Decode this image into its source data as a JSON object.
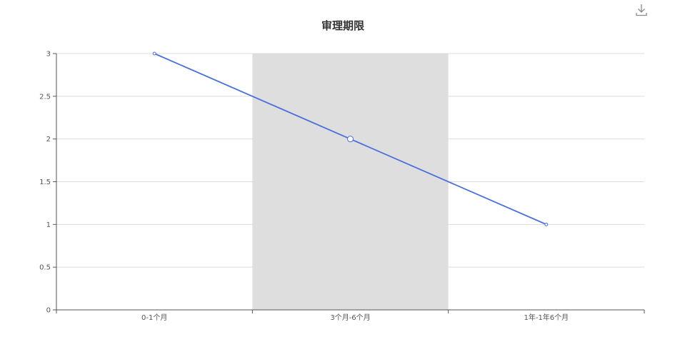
{
  "toolbar": {
    "download_icon": "download-icon"
  },
  "colors": {
    "line": "#4a6fdc",
    "highlight_band": "#dedede",
    "grid": "#dddddd",
    "axis": "#555555",
    "title": "#333333"
  },
  "chart_data": {
    "type": "line",
    "title": "审理期限",
    "xlabel": "",
    "ylabel": "",
    "categories": [
      "0-1个月",
      "3个月-6个月",
      "1年-1年6个月"
    ],
    "series": [
      {
        "values": [
          3,
          2,
          1
        ]
      }
    ],
    "ylim": [
      0,
      3
    ],
    "yticks": [
      0,
      0.5,
      1,
      1.5,
      2,
      2.5,
      3
    ],
    "grid": true,
    "highlighted_category": "3个月-6个月"
  }
}
